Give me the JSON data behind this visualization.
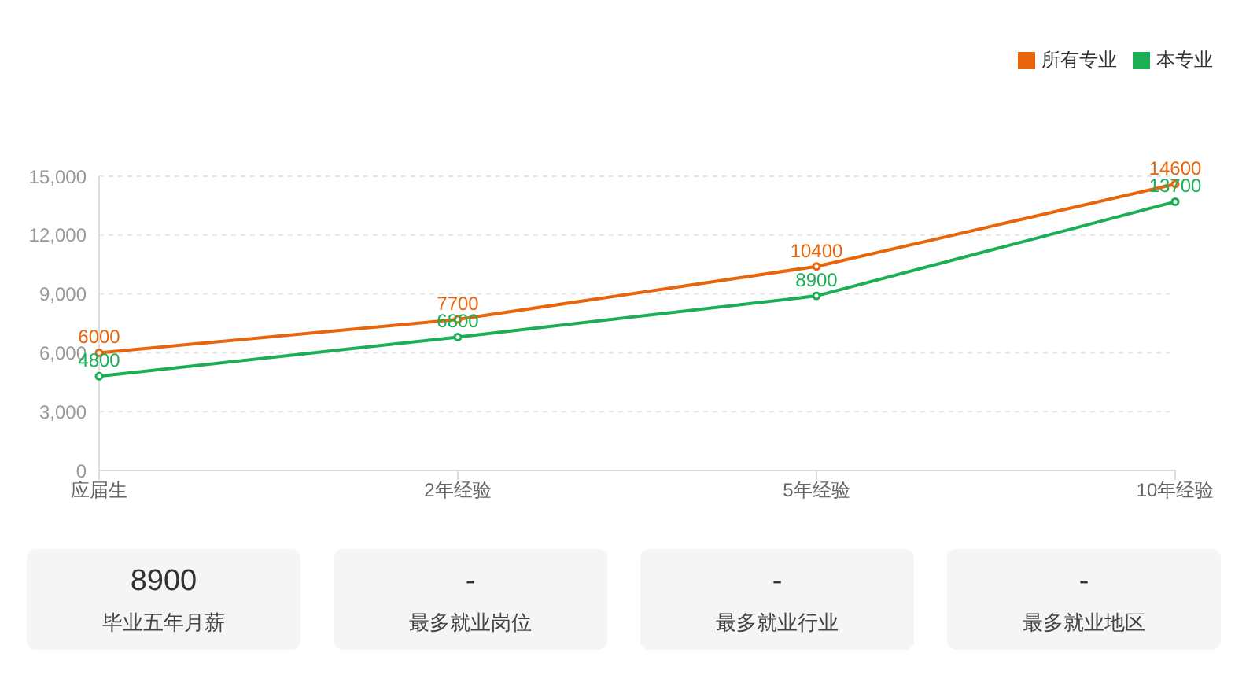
{
  "chart_data": [
    {
      "type": "line",
      "categories": [
        "应届生",
        "2年经验",
        "5年经验",
        "10年经验"
      ],
      "series": [
        {
          "name": "本专业",
          "color": "#1aae55",
          "values": [
            4800,
            6800,
            8900,
            13700
          ]
        },
        {
          "name": "所有专业",
          "color": "#e8650c",
          "values": [
            6000,
            7700,
            10400,
            14600
          ]
        }
      ],
      "ylim": [
        0,
        15000
      ],
      "yticks": [
        0,
        {
          "value": 3000,
          "label": "3,000"
        },
        {
          "value": 6000,
          "label": "6,000"
        },
        {
          "value": 9000,
          "label": "9,000"
        },
        {
          "value": 12000,
          "label": "12,000"
        },
        {
          "value": 15000,
          "label": "15,000"
        }
      ],
      "grid": "y",
      "legend": "top right",
      "marker": "circle",
      "line_style": "solid",
      "data_labels": true
    },
    {
      "type": "other",
      "annotations": [
        "8900",
        "毕业五年月薪",
        "-",
        "最多就业岗位",
        "-",
        "最多就业行业",
        "-",
        "最多就业地区"
      ]
    }
  ]
}
